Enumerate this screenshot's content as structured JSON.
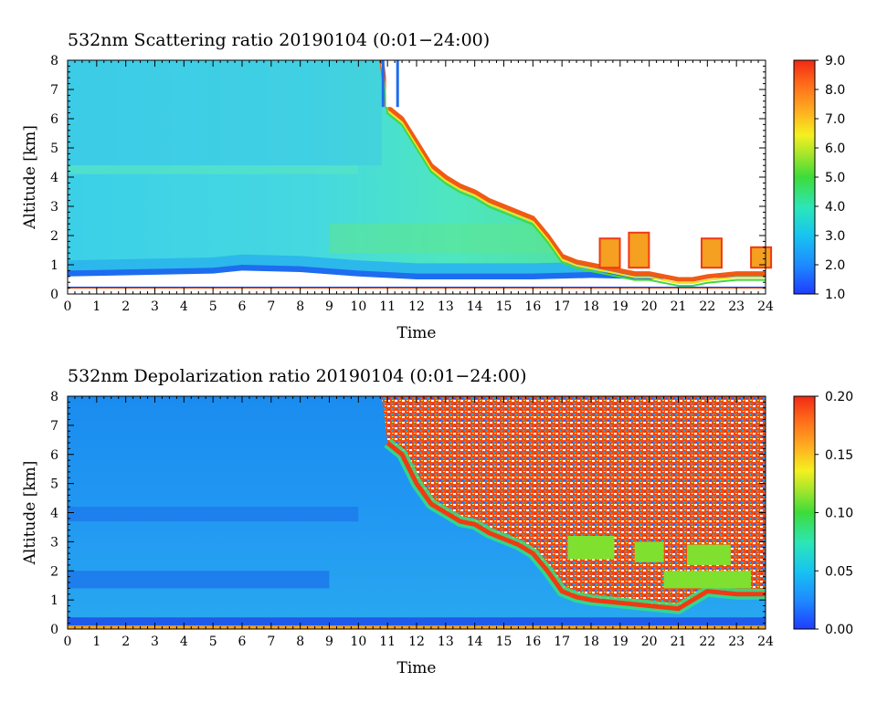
{
  "chart_data": [
    {
      "type": "heatmap",
      "title": "532nm Scattering ratio  20190104 (0:01−24:00)",
      "xlabel": "Time",
      "ylabel": "Altitude [km]",
      "xlim": [
        0,
        24
      ],
      "ylim": [
        0,
        8
      ],
      "x_ticks": [
        "0",
        "1",
        "2",
        "3",
        "4",
        "5",
        "6",
        "7",
        "8",
        "9",
        "10",
        "11",
        "12",
        "13",
        "14",
        "15",
        "16",
        "17",
        "18",
        "19",
        "20",
        "21",
        "22",
        "23",
        "24"
      ],
      "y_ticks": [
        "0",
        "1",
        "2",
        "3",
        "4",
        "5",
        "6",
        "7",
        "8"
      ],
      "colorbar": {
        "range": [
          1.0,
          9.0
        ],
        "ticks": [
          "1.0",
          "2.0",
          "3.0",
          "4.0",
          "5.0",
          "6.0",
          "7.0",
          "8.0",
          "9.0"
        ]
      },
      "cloud_top_km": [
        [
          0,
          8
        ],
        [
          10.8,
          8
        ],
        [
          11.0,
          6.4
        ],
        [
          11.5,
          6.0
        ],
        [
          12.0,
          5.2
        ],
        [
          12.5,
          4.4
        ],
        [
          13.0,
          4.0
        ],
        [
          13.5,
          3.7
        ],
        [
          14.0,
          3.5
        ],
        [
          14.5,
          3.2
        ],
        [
          15.0,
          3.0
        ],
        [
          15.5,
          2.8
        ],
        [
          16.0,
          2.6
        ],
        [
          16.5,
          2.0
        ],
        [
          17.0,
          1.3
        ],
        [
          17.5,
          1.1
        ],
        [
          18.0,
          1.0
        ],
        [
          18.5,
          0.9
        ],
        [
          19.0,
          0.8
        ],
        [
          19.5,
          0.7
        ],
        [
          20.0,
          0.7
        ],
        [
          20.5,
          0.6
        ],
        [
          21.0,
          0.5
        ],
        [
          21.5,
          0.5
        ],
        [
          22.0,
          0.6
        ],
        [
          23.0,
          0.7
        ],
        [
          24.0,
          0.7
        ]
      ],
      "low_layer_top_km": [
        [
          0,
          0.6
        ],
        [
          5,
          0.7
        ],
        [
          6,
          0.8
        ],
        [
          8,
          0.75
        ],
        [
          10,
          0.6
        ],
        [
          12,
          0.5
        ],
        [
          14,
          0.5
        ],
        [
          16,
          0.5
        ],
        [
          18,
          0.55
        ],
        [
          20,
          0.5
        ],
        [
          22,
          0.55
        ],
        [
          24,
          0.55
        ]
      ]
    },
    {
      "type": "heatmap",
      "title": "532nm Depolarization ratio  20190104 (0:01−24:00)",
      "xlabel": "Time",
      "ylabel": "Altitude [km]",
      "xlim": [
        0,
        24
      ],
      "ylim": [
        0,
        8
      ],
      "x_ticks": [
        "0",
        "1",
        "2",
        "3",
        "4",
        "5",
        "6",
        "7",
        "8",
        "9",
        "10",
        "11",
        "12",
        "13",
        "14",
        "15",
        "16",
        "17",
        "18",
        "19",
        "20",
        "21",
        "22",
        "23",
        "24"
      ],
      "y_ticks": [
        "0",
        "1",
        "2",
        "3",
        "4",
        "5",
        "6",
        "7",
        "8"
      ],
      "colorbar": {
        "range": [
          0.0,
          0.2
        ],
        "ticks": [
          "0.00",
          "0.05",
          "0.10",
          "0.15",
          "0.20"
        ]
      },
      "cloud_base_km": [
        [
          10.8,
          8
        ],
        [
          11.0,
          6.4
        ],
        [
          11.5,
          6.0
        ],
        [
          12.0,
          5.0
        ],
        [
          12.5,
          4.3
        ],
        [
          13.0,
          4.0
        ],
        [
          13.5,
          3.7
        ],
        [
          14.0,
          3.6
        ],
        [
          14.5,
          3.3
        ],
        [
          15.0,
          3.1
        ],
        [
          15.5,
          2.9
        ],
        [
          16.0,
          2.6
        ],
        [
          16.5,
          2.0
        ],
        [
          17.0,
          1.3
        ],
        [
          17.5,
          1.1
        ],
        [
          18.0,
          1.0
        ],
        [
          19.0,
          0.9
        ],
        [
          20.0,
          0.8
        ],
        [
          21.0,
          0.7
        ],
        [
          22.0,
          1.3
        ],
        [
          23.0,
          1.2
        ],
        [
          24.0,
          1.2
        ]
      ]
    }
  ]
}
